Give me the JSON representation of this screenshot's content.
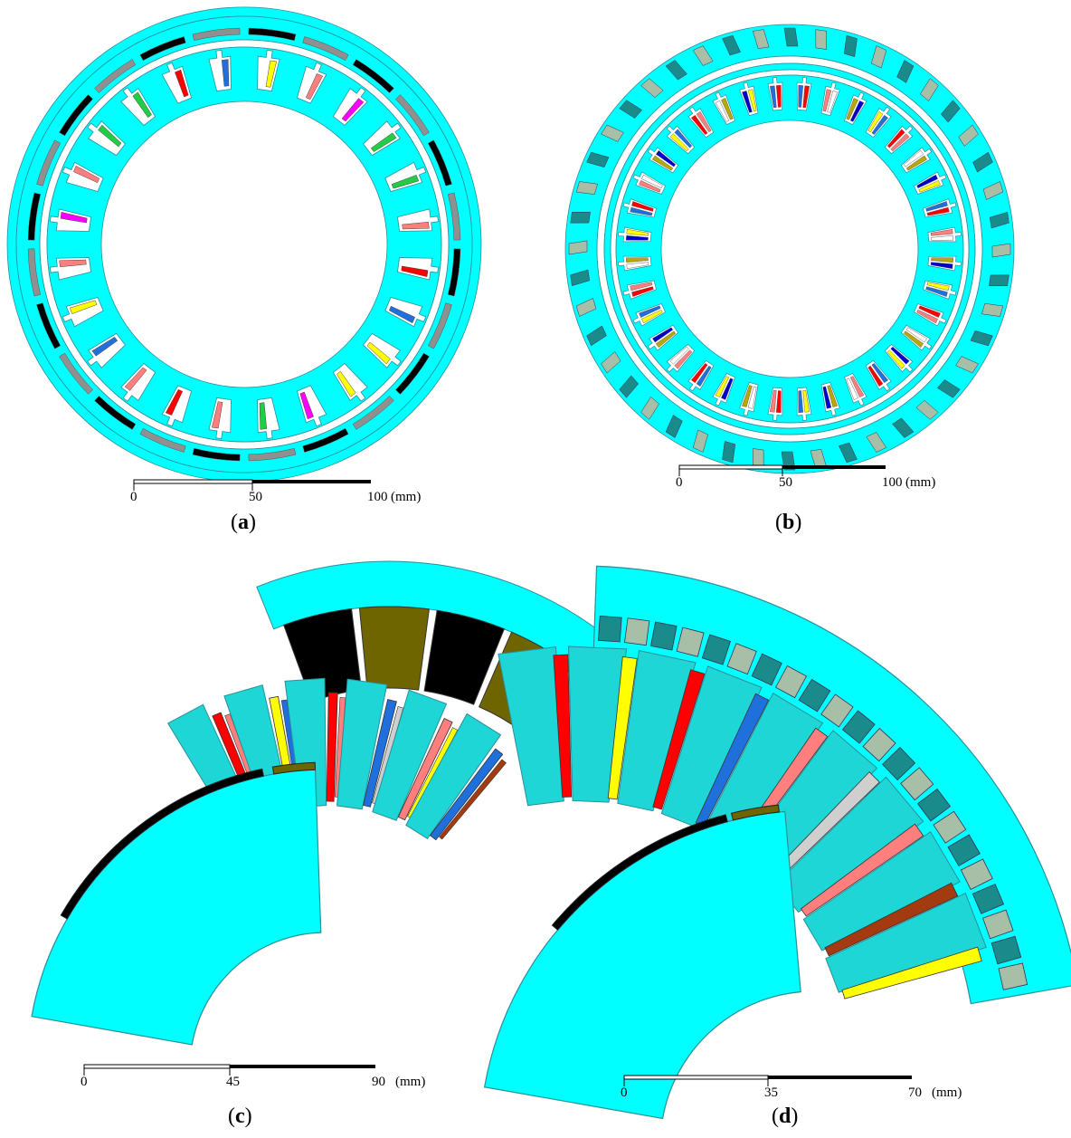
{
  "panels": [
    {
      "id": "a",
      "label": "a",
      "scale": {
        "ticks": [
          "0",
          "50",
          "100"
        ],
        "unit": "(mm)"
      }
    },
    {
      "id": "b",
      "label": "b",
      "scale": {
        "ticks": [
          "0",
          "50",
          "100"
        ],
        "unit": "(mm)"
      }
    },
    {
      "id": "c",
      "label": "c",
      "scale": {
        "ticks": [
          "0",
          "45",
          "90"
        ],
        "unit": "(mm)"
      }
    },
    {
      "id": "d",
      "label": "d",
      "scale": {
        "ticks": [
          "0",
          "35",
          "70"
        ],
        "unit": "(mm)"
      }
    }
  ],
  "colors": {
    "iron": "#00ffff",
    "iron_dark": "#1fd6d6",
    "outline": "#2a8f99",
    "magnet_dark": "#000000",
    "magnet_grey": "#909090",
    "magnet_olive": "#6e6400",
    "pm_teal": "#1a8a8a",
    "pm_sage": "#a6bfa6",
    "coil_red": "#ff0000",
    "coil_yellow": "#ffff00",
    "coil_pink": "#ff7f7f",
    "coil_blue": "#1f6fdc",
    "coil_green": "#22cc44",
    "coil_magenta": "#ff00ff",
    "coil_navy": "#0000cc",
    "coil_white": "#ffffff",
    "coil_olive": "#b8a800",
    "coil_brown": "#a33a10",
    "coil_silver": "#cfcfcf"
  }
}
